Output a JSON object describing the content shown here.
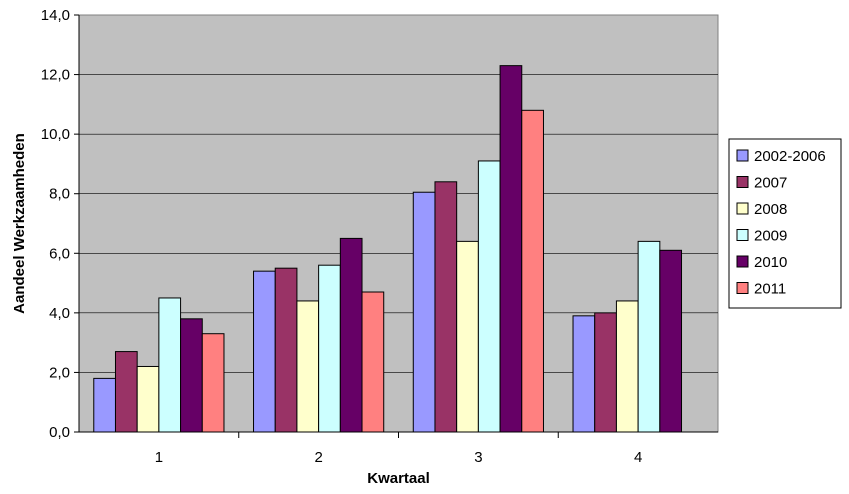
{
  "chart_data": {
    "type": "bar",
    "xlabel": "Kwartaal",
    "ylabel": "Aandeel Werkzaamheden",
    "categories": [
      "1",
      "2",
      "3",
      "4"
    ],
    "ylim": [
      0,
      14
    ],
    "ytick_step": 2,
    "ytick_labels": [
      "0,0",
      "2,0",
      "4,0",
      "6,0",
      "8,0",
      "10,0",
      "12,0",
      "14,0"
    ],
    "grid": true,
    "legend_position": "right",
    "plot_background": "#C0C0C0",
    "series": [
      {
        "name": "2002-2006",
        "color": "#9999FF",
        "values": [
          1.8,
          5.4,
          8.05,
          3.9
        ]
      },
      {
        "name": "2007",
        "color": "#993366",
        "values": [
          2.7,
          5.5,
          8.4,
          4.0
        ]
      },
      {
        "name": "2008",
        "color": "#FFFFCC",
        "values": [
          2.2,
          4.4,
          6.4,
          4.4
        ]
      },
      {
        "name": "2009",
        "color": "#CCFFFF",
        "values": [
          4.5,
          5.6,
          9.1,
          6.4
        ]
      },
      {
        "name": "2010",
        "color": "#660066",
        "values": [
          3.8,
          6.5,
          12.3,
          6.1
        ]
      },
      {
        "name": "2011",
        "color": "#FF8080",
        "values": [
          3.3,
          4.7,
          10.8,
          null
        ]
      }
    ]
  }
}
